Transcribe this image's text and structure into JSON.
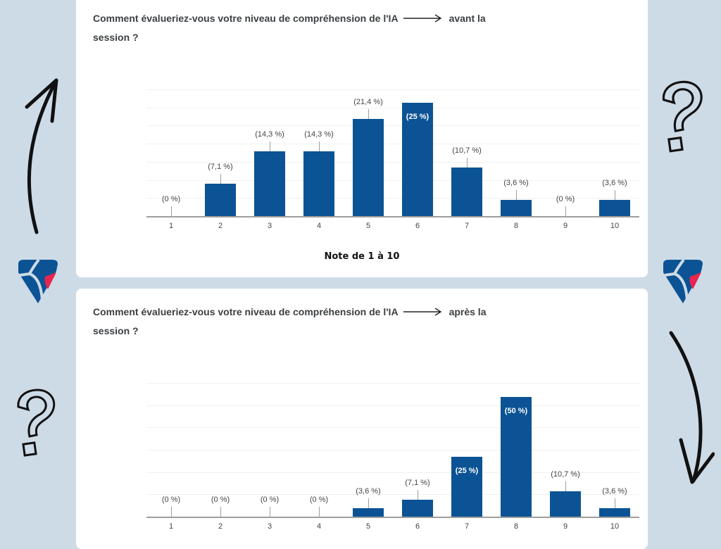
{
  "page": {
    "background": "#cddbe7",
    "bar_color": "#0b5394",
    "logo_colors": {
      "blue": "#0b5394",
      "pink": "#e8254f"
    }
  },
  "top_card": {
    "question_prefix": "Comment évalueriez-vous votre niveau de compréhension de l'IA",
    "question_suffix": "avant la",
    "question_line2": "session ?",
    "xlabel": "Note de 1 à 10"
  },
  "bottom_card": {
    "question_prefix": "Comment évalueriez-vous votre niveau de compréhension de l'IA",
    "question_suffix": "après la",
    "question_line2": "session ?"
  },
  "decorations": {
    "left": [
      "arrow-up-curved",
      "logo-shield",
      "question-mark"
    ],
    "right": [
      "question-mark",
      "logo-shield",
      "arrow-down-curved"
    ]
  },
  "chart_data": [
    {
      "type": "bar",
      "title": "Comment évalueriez-vous votre niveau de compréhension de l'IA avant la session ?",
      "xlabel": "Note de 1 à 10",
      "ylabel": "",
      "categories": [
        "1",
        "2",
        "3",
        "4",
        "5",
        "6",
        "7",
        "8",
        "9",
        "10"
      ],
      "values": [
        0,
        7.1,
        14.3,
        14.3,
        21.4,
        25,
        10.7,
        3.6,
        0,
        3.6
      ],
      "labels": [
        "(0 %)",
        "(7,1 %)",
        "(14,3 %)",
        "(14,3 %)",
        "(21,4 %)",
        "(25 %)",
        "(10,7 %)",
        "(3,6 %)",
        "(0 %)",
        "(3,6 %)"
      ],
      "ylim": [
        0,
        28
      ],
      "grid": true,
      "legend": "none"
    },
    {
      "type": "bar",
      "title": "Comment évalueriez-vous votre niveau de compréhension de l'IA après la session ?",
      "xlabel": "",
      "ylabel": "",
      "categories": [
        "1",
        "2",
        "3",
        "4",
        "5",
        "6",
        "7",
        "8",
        "9",
        "10"
      ],
      "values": [
        0,
        0,
        0,
        0,
        3.6,
        7.1,
        25,
        50,
        10.7,
        3.6
      ],
      "labels": [
        "(0 %)",
        "(0 %)",
        "(0 %)",
        "(0 %)",
        "(3,6 %)",
        "(7,1 %)",
        "(25 %)",
        "(50 %)",
        "(10,7 %)",
        "(3,6 %)"
      ],
      "ylim": [
        0,
        56
      ],
      "grid": true,
      "legend": "none"
    }
  ]
}
